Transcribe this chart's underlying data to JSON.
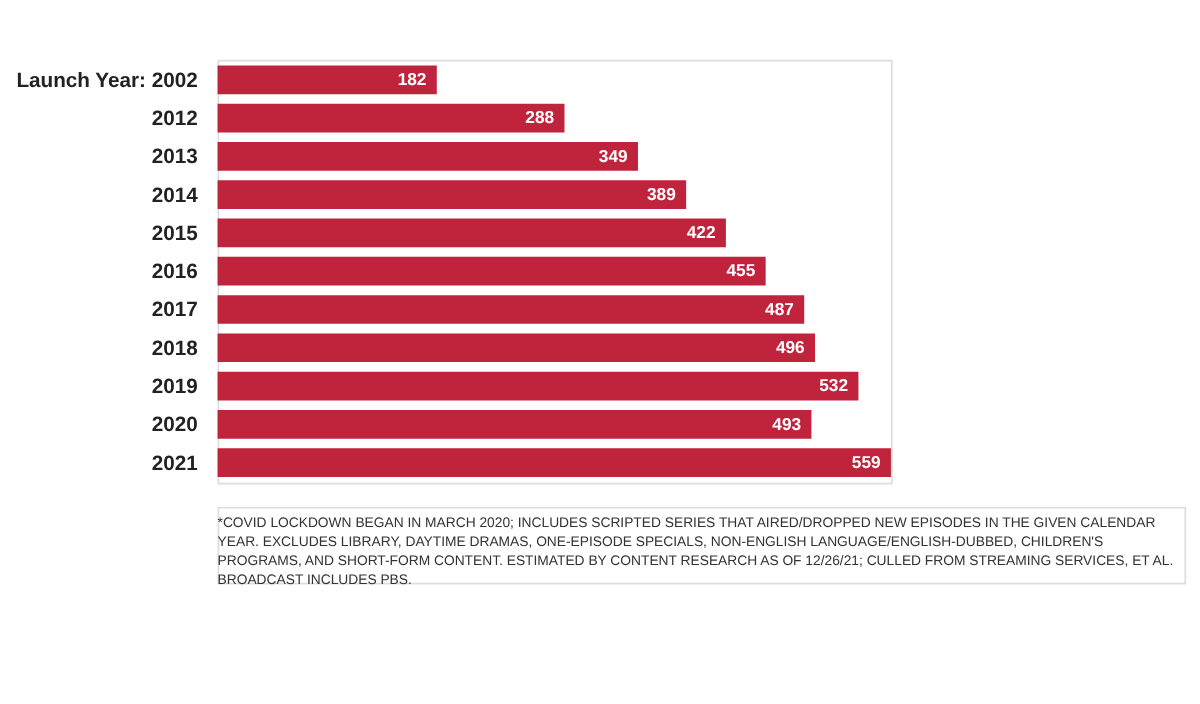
{
  "chart_data": {
    "type": "bar",
    "orientation": "horizontal",
    "data_labels": true,
    "categories": [
      "Launch Year: 2002",
      "2012",
      "2013",
      "2014",
      "2015",
      "2016",
      "2017",
      "2018",
      "2019",
      "2020",
      "2021"
    ],
    "values": [
      182,
      288,
      349,
      389,
      422,
      455,
      487,
      496,
      532,
      493,
      559
    ],
    "color": "#c0243c",
    "xlim": [
      0,
      559
    ],
    "tick_labels": false,
    "annotations": [
      "*COVID LOCKDOWN BEGAN IN MARCH 2020; INCLUDES SCRIPTED SERIES THAT AIRED/DROPPED NEW EPISODES IN THE GIVEN CALENDAR YEAR. EXCLUDES LIBRARY, DAYTIME DRAMAS, ONE-EPISODE SPECIALS, NON-ENGLISH LANGUAGE/ENGLISH-DUBBED, CHILDREN'S PROGRAMS, AND SHORT-FORM CONTENT. ESTIMATED BY CONTENT RESEARCH AS OF 12/26/21; CULLED FROM STREAMING SERVICES, ET AL. BROADCAST INCLUDES PBS."
    ]
  }
}
